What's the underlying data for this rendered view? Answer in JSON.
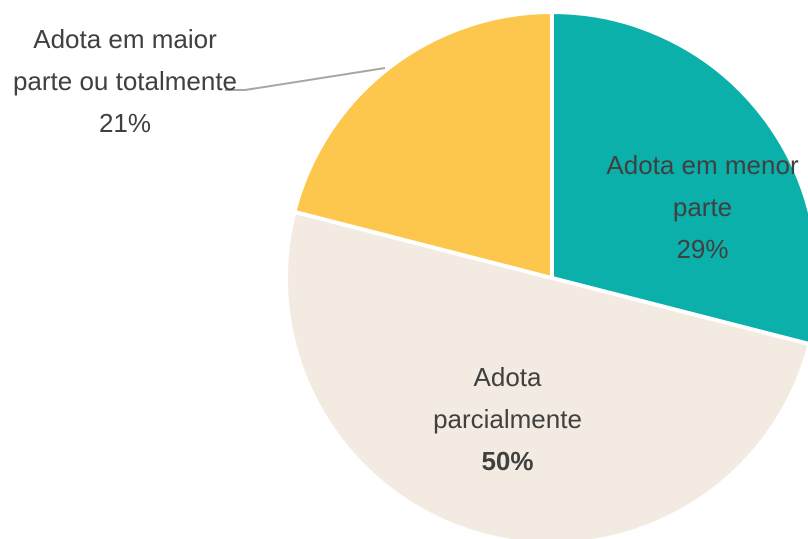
{
  "chart_data": {
    "type": "pie",
    "categories": [
      "Adota em menor parte",
      "Adota parcialmente",
      "Adota em maior parte ou totalmente"
    ],
    "values": [
      29,
      50,
      21
    ],
    "value_labels": [
      "29%",
      "50%",
      "21%"
    ],
    "colors": [
      "#0BB0AA",
      "#F3EBE1",
      "#FDC64C"
    ]
  }
}
